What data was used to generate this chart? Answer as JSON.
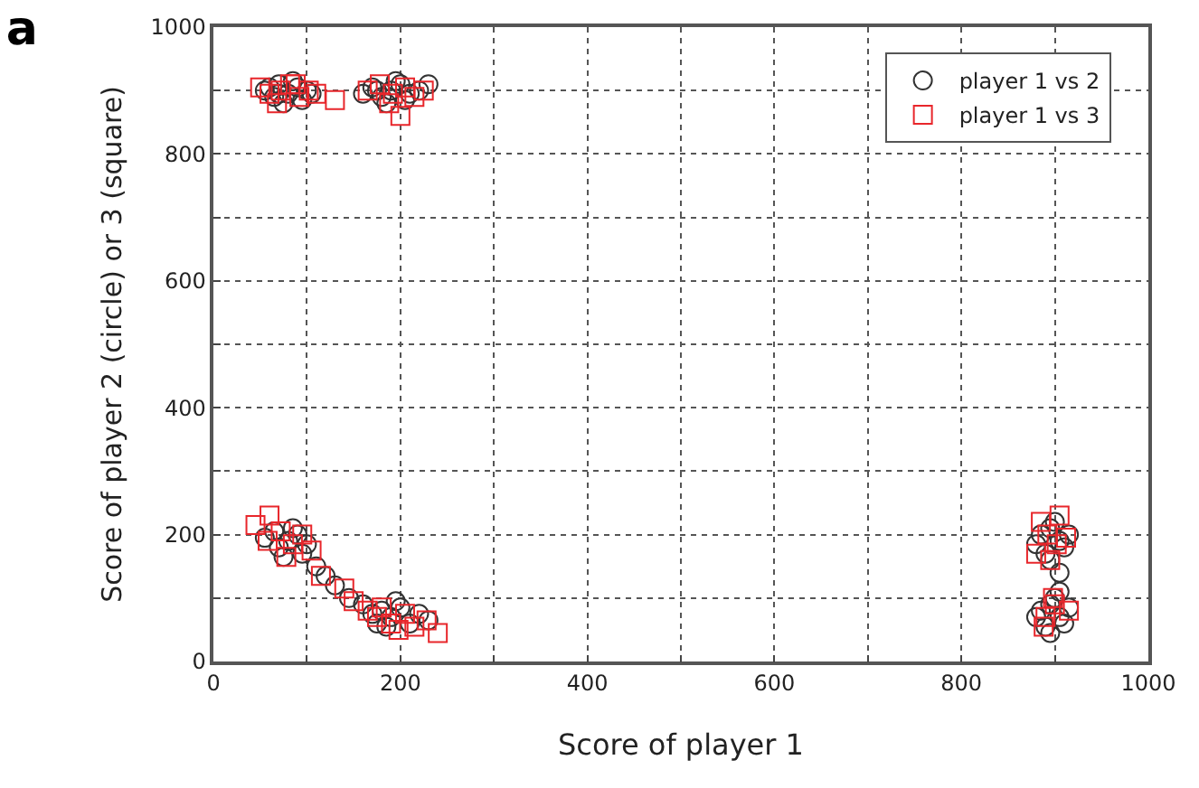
{
  "chart_data": {
    "type": "scatter",
    "title": "a",
    "xlabel": "Score of player 1",
    "ylabel": "Score of player 2 (circle) or 3 (square)",
    "xlim": [
      0,
      1000
    ],
    "ylim": [
      0,
      1000
    ],
    "xticks": [
      0,
      {
        "value": 100,
        "label": null
      },
      200,
      {
        "value": 300,
        "label": null
      },
      400,
      {
        "value": 500,
        "label": null
      },
      600,
      {
        "value": 700,
        "label": null
      },
      800,
      {
        "value": 900,
        "label": null
      },
      1000
    ],
    "yticks": [
      0,
      {
        "value": 100,
        "label": null
      },
      200,
      {
        "value": 300,
        "label": null
      },
      400,
      {
        "value": 500,
        "label": null
      },
      600,
      {
        "value": 700,
        "label": null
      },
      800,
      {
        "value": 900,
        "label": null
      },
      1000
    ],
    "grid": true,
    "legend": "top right",
    "series": [
      {
        "name": "player 1 vs 2",
        "color": "#333333",
        "marker": "circle",
        "x": [
          55,
          65,
          70,
          80,
          90,
          100,
          75,
          85,
          60,
          105,
          95,
          70,
          160,
          170,
          180,
          190,
          200,
          210,
          220,
          230,
          185,
          195,
          175,
          205,
          55,
          65,
          70,
          80,
          90,
          100,
          75,
          85,
          95,
          110,
          120,
          130,
          145,
          160,
          170,
          180,
          190,
          200,
          210,
          220,
          185,
          195,
          230,
          175,
          885,
          895,
          905,
          910,
          890,
          900,
          915,
          880,
          895,
          905,
          885,
          895,
          905,
          910,
          890,
          900,
          915,
          880,
          895,
          905
        ],
        "values": [
          900,
          890,
          910,
          895,
          905,
          900,
          880,
          915,
          905,
          895,
          885,
          895,
          895,
          905,
          890,
          900,
          910,
          895,
          900,
          910,
          880,
          915,
          900,
          885,
          195,
          205,
          180,
          190,
          200,
          185,
          165,
          210,
          170,
          150,
          135,
          120,
          100,
          90,
          75,
          80,
          70,
          85,
          60,
          75,
          55,
          95,
          65,
          60,
          200,
          210,
          190,
          180,
          170,
          220,
          200,
          185,
          160,
          140,
          80,
          90,
          70,
          60,
          55,
          100,
          85,
          70,
          45,
          110
        ]
      },
      {
        "name": "player 1 vs 3",
        "color": "#e8262b",
        "marker": "square",
        "x": [
          50,
          60,
          72,
          82,
          92,
          102,
          68,
          88,
          110,
          130,
          200,
          165,
          178,
          192,
          205,
          215,
          225,
          188,
          45,
          60,
          58,
          72,
          85,
          95,
          105,
          78,
          115,
          140,
          150,
          165,
          175,
          190,
          205,
          215,
          240,
          228,
          180,
          198,
          885,
          892,
          902,
          912,
          895,
          880,
          905,
          890,
          900,
          915,
          888,
          898
        ],
        "values": [
          905,
          895,
          900,
          910,
          890,
          900,
          880,
          910,
          895,
          885,
          860,
          900,
          910,
          895,
          905,
          890,
          900,
          880,
          215,
          230,
          190,
          205,
          185,
          200,
          175,
          165,
          135,
          115,
          95,
          80,
          70,
          60,
          75,
          55,
          45,
          65,
          85,
          50,
          220,
          200,
          185,
          195,
          160,
          170,
          230,
          70,
          90,
          80,
          55,
          100
        ]
      }
    ]
  }
}
